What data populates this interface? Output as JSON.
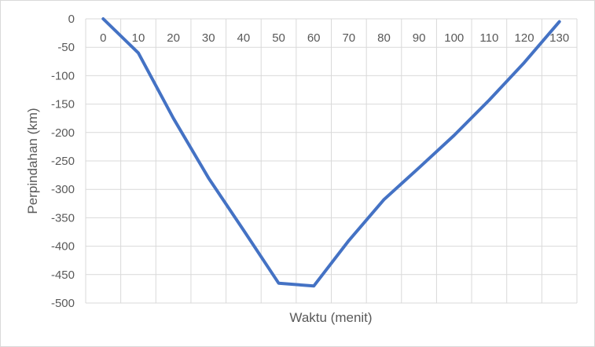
{
  "chart_data": {
    "type": "line",
    "title": "",
    "xlabel": "Waktu (menit)",
    "ylabel": "Perpindahan (km)",
    "x_ticks": [
      "0",
      "10",
      "20",
      "30",
      "40",
      "50",
      "60",
      "70",
      "80",
      "90",
      "100",
      "110",
      "120",
      "130"
    ],
    "y_ticks": [
      "0",
      "-50",
      "-100",
      "-150",
      "-200",
      "-250",
      "-300",
      "-350",
      "-400",
      "-450",
      "-500"
    ],
    "xlim": [
      -5,
      135
    ],
    "ylim": [
      -500,
      0
    ],
    "grid": true,
    "legend": "none",
    "series": [
      {
        "color": "#4472c4",
        "x": [
          0,
          10,
          20,
          30,
          40,
          50,
          60,
          70,
          80,
          90,
          100,
          110,
          120,
          130
        ],
        "y": [
          0,
          -60,
          -175,
          -280,
          -372,
          -465,
          -470,
          -390,
          -318,
          -262,
          -205,
          -143,
          -77,
          -5
        ]
      }
    ],
    "colors": {
      "line": "#4472c4",
      "grid": "#d9d9d9",
      "text": "#595959"
    }
  }
}
